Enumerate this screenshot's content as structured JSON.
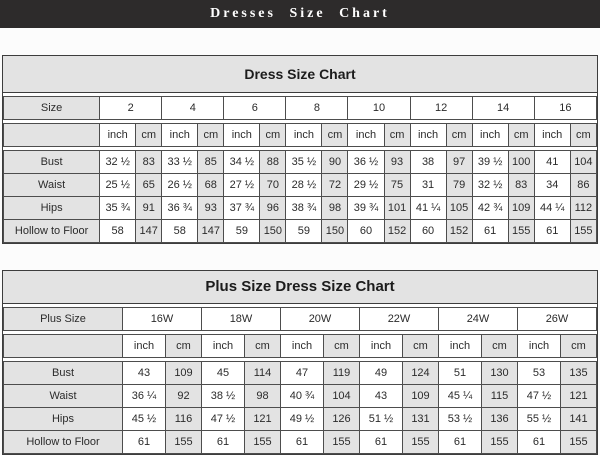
{
  "page": {
    "title": "Dresses Size Chart",
    "title_bar_color": "#2d2b2b",
    "background": "#fcfcfc"
  },
  "colors": {
    "cell_gray": "#e3e3e3",
    "cell_white": "#ffffff",
    "border": "#4d4d4d",
    "text": "#2b2b2b"
  },
  "tables": [
    {
      "title": "Dress Size Chart",
      "size_row_label": "Size",
      "unit_labels": [
        "inch",
        "cm"
      ],
      "sizes": [
        "2",
        "4",
        "6",
        "8",
        "10",
        "12",
        "14",
        "16"
      ],
      "rows": [
        {
          "label": "Bust",
          "inch": [
            "32 ½",
            "33 ½",
            "34 ½",
            "35 ½",
            "36 ½",
            "38",
            "39 ½",
            "41"
          ],
          "cm": [
            "83",
            "85",
            "88",
            "90",
            "93",
            "97",
            "100",
            "104"
          ]
        },
        {
          "label": "Waist",
          "inch": [
            "25 ½",
            "26 ½",
            "27 ½",
            "28 ½",
            "29 ½",
            "31",
            "32 ½",
            "34"
          ],
          "cm": [
            "65",
            "68",
            "70",
            "72",
            "75",
            "79",
            "83",
            "86"
          ]
        },
        {
          "label": "Hips",
          "inch": [
            "35 ¾",
            "36 ¾",
            "37 ¾",
            "38 ¾",
            "39 ¾",
            "41 ¼",
            "42 ¾",
            "44 ¼"
          ],
          "cm": [
            "91",
            "93",
            "96",
            "98",
            "101",
            "105",
            "109",
            "112"
          ]
        },
        {
          "label": "Hollow to Floor",
          "inch": [
            "58",
            "58",
            "59",
            "59",
            "60",
            "60",
            "61",
            "61"
          ],
          "cm": [
            "147",
            "147",
            "150",
            "150",
            "152",
            "152",
            "155",
            "155"
          ]
        }
      ]
    },
    {
      "title": "Plus Size Dress Size Chart",
      "size_row_label": "Plus Size",
      "unit_labels": [
        "inch",
        "cm"
      ],
      "sizes": [
        "16W",
        "18W",
        "20W",
        "22W",
        "24W",
        "26W"
      ],
      "rows": [
        {
          "label": "Bust",
          "inch": [
            "43",
            "45",
            "47",
            "49",
            "51",
            "53"
          ],
          "cm": [
            "109",
            "114",
            "119",
            "124",
            "130",
            "135"
          ]
        },
        {
          "label": "Waist",
          "inch": [
            "36 ¼",
            "38 ½",
            "40 ¾",
            "43",
            "45 ¼",
            "47 ½"
          ],
          "cm": [
            "92",
            "98",
            "104",
            "109",
            "115",
            "121"
          ]
        },
        {
          "label": "Hips",
          "inch": [
            "45 ½",
            "47 ½",
            "49 ½",
            "51 ½",
            "53 ½",
            "55 ½"
          ],
          "cm": [
            "116",
            "121",
            "126",
            "131",
            "136",
            "141"
          ]
        },
        {
          "label": "Hollow to Floor",
          "inch": [
            "61",
            "61",
            "61",
            "61",
            "61",
            "61"
          ],
          "cm": [
            "155",
            "155",
            "155",
            "155",
            "155",
            "155"
          ]
        }
      ]
    }
  ]
}
